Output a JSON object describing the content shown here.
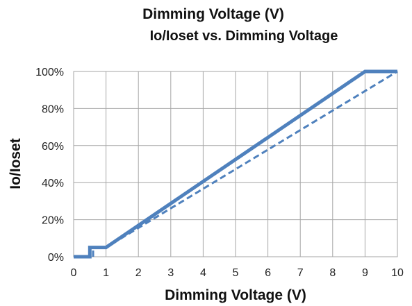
{
  "chart_data": {
    "type": "line",
    "supertitle": "Dimming Voltage (V)",
    "title": "Io/Ioset vs. Dimming Voltage",
    "xlabel": "Dimming Voltage (V)",
    "ylabel": "Io/Ioset",
    "xlim": [
      0,
      10
    ],
    "ylim": [
      0,
      100
    ],
    "x_ticks": [
      "0",
      "1",
      "2",
      "3",
      "4",
      "5",
      "6",
      "7",
      "8",
      "9",
      "10"
    ],
    "y_ticks": [
      "0%",
      "20%",
      "40%",
      "60%",
      "80%",
      "100%"
    ],
    "grid": true,
    "legend": "none",
    "series": [
      {
        "style": "solid",
        "color": "#4f81bd",
        "x": [
          0,
          0.5,
          0.5,
          1,
          9,
          10
        ],
        "y": [
          0,
          0,
          5,
          5,
          100,
          100
        ]
      },
      {
        "style": "dashed",
        "color": "#4f81bd",
        "x": [
          0.6,
          0.6,
          1,
          10
        ],
        "y": [
          0,
          5,
          5,
          100
        ]
      }
    ]
  }
}
